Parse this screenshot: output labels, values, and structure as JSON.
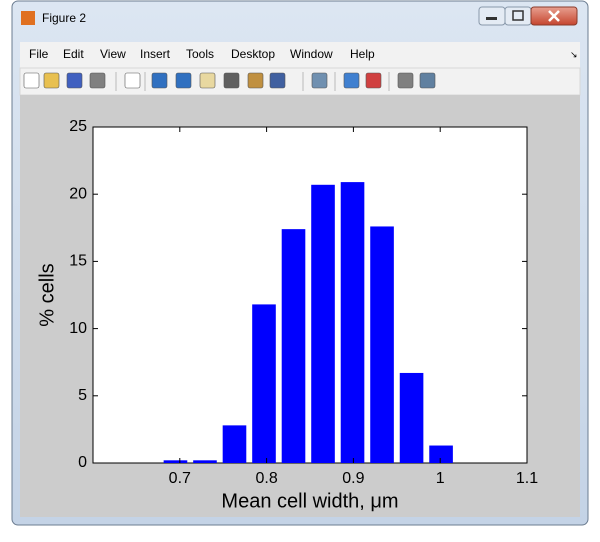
{
  "window": {
    "title": "Figure 2",
    "menu": [
      "File",
      "Edit",
      "View",
      "Insert",
      "Tools",
      "Desktop",
      "Window",
      "Help"
    ]
  },
  "chart_data": {
    "type": "bar",
    "x": [
      0.695,
      0.729,
      0.763,
      0.797,
      0.831,
      0.865,
      0.899,
      0.933,
      0.967,
      1.001
    ],
    "values": [
      0.2,
      0.2,
      2.8,
      11.8,
      17.4,
      20.7,
      20.9,
      17.6,
      6.7,
      1.3
    ],
    "color": "#0000ff",
    "xlim": [
      0.6,
      1.1
    ],
    "xticks": [
      0.7,
      0.8,
      0.9,
      1,
      1.1
    ],
    "ylim": [
      0,
      25
    ],
    "yticks": [
      0,
      5,
      10,
      15,
      20,
      25
    ],
    "xlabel": "Mean cell width, μm",
    "ylabel": "% cells",
    "grid": false
  }
}
